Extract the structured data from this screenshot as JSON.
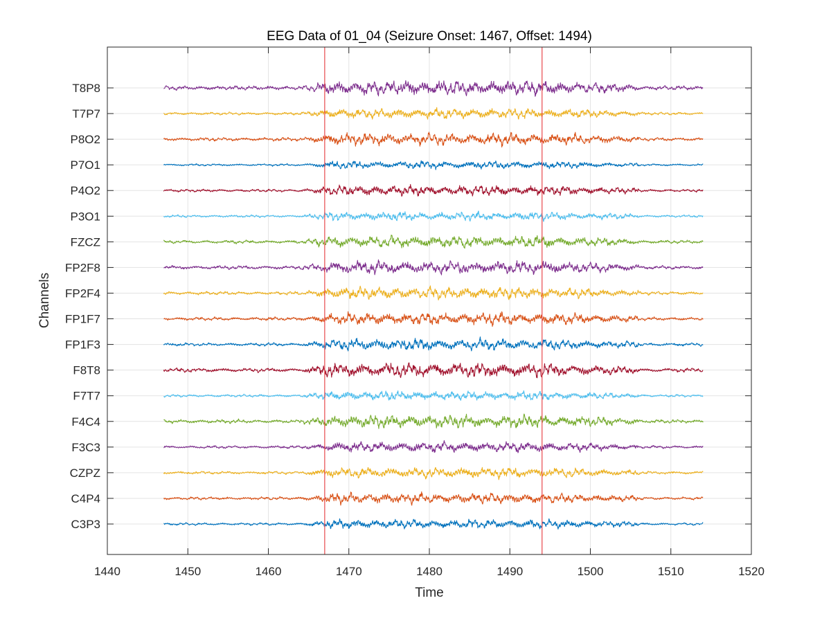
{
  "chart_data": {
    "type": "line",
    "title": "EEG Data of 01_04 (Seizure Onset: 1467, Offset: 1494)",
    "xlabel": "Time",
    "ylabel": "Channels",
    "xlim": [
      1440,
      1520
    ],
    "xticks": [
      1440,
      1450,
      1460,
      1470,
      1480,
      1490,
      1500,
      1510,
      1520
    ],
    "signal_range": [
      1447,
      1514
    ],
    "grid": true,
    "channels": [
      {
        "name": "T8P8",
        "color": "#7E2F8E",
        "activity": 1.0
      },
      {
        "name": "T7P7",
        "color": "#EDB120",
        "activity": 0.55
      },
      {
        "name": "P8O2",
        "color": "#D95319",
        "activity": 0.75
      },
      {
        "name": "P7O1",
        "color": "#0072BD",
        "activity": 0.3
      },
      {
        "name": "P4O2",
        "color": "#A2142F",
        "activity": 0.55
      },
      {
        "name": "P3O1",
        "color": "#4DBEEE",
        "activity": 0.4
      },
      {
        "name": "FZCZ",
        "color": "#77AC30",
        "activity": 0.75
      },
      {
        "name": "FP2F8",
        "color": "#7E2F8E",
        "activity": 0.85
      },
      {
        "name": "FP2F4",
        "color": "#EDB120",
        "activity": 0.75
      },
      {
        "name": "FP1F7",
        "color": "#D95319",
        "activity": 0.75
      },
      {
        "name": "FP1F3",
        "color": "#0072BD",
        "activity": 0.7
      },
      {
        "name": "F8T8",
        "color": "#A2142F",
        "activity": 1.0
      },
      {
        "name": "F7T7",
        "color": "#4DBEEE",
        "activity": 0.45
      },
      {
        "name": "F4C4",
        "color": "#77AC30",
        "activity": 0.85
      },
      {
        "name": "F3C3",
        "color": "#7E2F8E",
        "activity": 0.55
      },
      {
        "name": "CZPZ",
        "color": "#EDB120",
        "activity": 0.6
      },
      {
        "name": "C4P4",
        "color": "#D95319",
        "activity": 0.6
      },
      {
        "name": "C3P3",
        "color": "#0072BD",
        "activity": 0.45
      }
    ],
    "events": [
      {
        "name": "Seizure Onset",
        "x": 1467,
        "color": "#E8474C"
      },
      {
        "name": "Seizure Offset",
        "x": 1494,
        "color": "#E8474C"
      }
    ]
  }
}
